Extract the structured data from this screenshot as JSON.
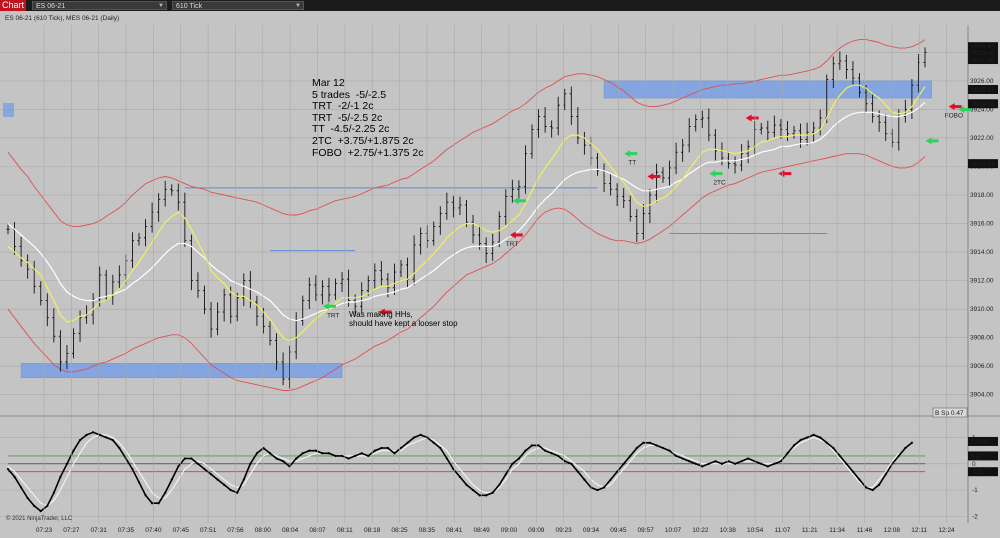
{
  "toolbar": {
    "tab_label": "Chart",
    "instrument": "ES 06-21",
    "interval": "610 Tick"
  },
  "chart_header": "ES 06-21 (610 Tick), MES 06-21 (Daily)",
  "notes": {
    "lines": [
      "Mar 12",
      "5 trades  -5/-2.5",
      "TRT  -2/-1 2c",
      "TRT  -5/-2.5 2c",
      "TT  -4.5/-2.25 2c",
      "2TC  +3.75/+1.875 2c",
      "FOBO  +2.75/+1.375 2c"
    ]
  },
  "annotation": {
    "line1": "Was making HHs,",
    "line2": "should have kept a looser stop"
  },
  "copyright": "© 2021 NinjaTrader, LLC",
  "colors": {
    "background": "#c4c4c4",
    "price_bars": "#111111",
    "ema_fast": "#f0f060",
    "ema_slow": "#ffffff",
    "bands": "#e05050",
    "zones": "#6f9be8",
    "entry_arrow": "#2ed15a",
    "exit_arrow": "#e0102a"
  },
  "chart_data": [
    {
      "type": "line",
      "name": "price",
      "ylim": [
        3903,
        3929.5
      ],
      "y_ticks": [
        3904,
        3906,
        3908,
        3910,
        3912,
        3914,
        3916,
        3918,
        3920,
        3922,
        3924,
        3926,
        3928
      ],
      "x_labels": [
        "07:23",
        "07:27",
        "07:31",
        "07:35",
        "07:40",
        "07:45",
        "07:51",
        "07:56",
        "08:00",
        "08:04",
        "08:07",
        "08:11",
        "08:18",
        "08:25",
        "08:35",
        "08:41",
        "08:49",
        "09:00",
        "09:09",
        "09:23",
        "09:34",
        "09:45",
        "09:57",
        "10:07",
        "10:22",
        "10:38",
        "10:54",
        "11:07",
        "11:21",
        "11:34",
        "11:46",
        "12:08",
        "12:11",
        "12:24"
      ],
      "close": [
        3915.6,
        3914.4,
        3913.4,
        3912.8,
        3911.6,
        3910.6,
        3909.4,
        3908.1,
        3906.3,
        3906.9,
        3908.3,
        3909.4,
        3909.6,
        3910.7,
        3912.4,
        3910.9,
        3911.9,
        3912.4,
        3913.4,
        3914.8,
        3915.0,
        3915.8,
        3916.8,
        3917.7,
        3918.4,
        3918.3,
        3917.5,
        3914.8,
        3912.0,
        3911.3,
        3910.0,
        3908.6,
        3909.8,
        3911.0,
        3909.5,
        3910.8,
        3912.0,
        3910.5,
        3909.5,
        3908.8,
        3907.8,
        3906.3,
        3905.1,
        3907.0,
        3909.2,
        3910.6,
        3911.7,
        3911.0,
        3911.6,
        3911.0,
        3911.8,
        3912.1,
        3910.6,
        3910.2,
        3911.3,
        3912.0,
        3912.7,
        3912.1,
        3911.5,
        3912.6,
        3913.1,
        3912.1,
        3914.5,
        3915.3,
        3914.8,
        3915.8,
        3916.7,
        3917.5,
        3917.1,
        3917.3,
        3916.1,
        3915.2,
        3914.6,
        3913.9,
        3914.7,
        3916.5,
        3917.9,
        3918.4,
        3918.6,
        3920.9,
        3922.6,
        3923.5,
        3922.8,
        3922.7,
        3924.3,
        3925.1,
        3923.5,
        3922.0,
        3921.5,
        3920.6,
        3919.7,
        3918.8,
        3918.4,
        3917.9,
        3917.6,
        3916.5,
        3915.3,
        3916.7,
        3918.0,
        3919.6,
        3919.2,
        3919.9,
        3921.0,
        3921.5,
        3922.8,
        3923.3,
        3923.4,
        3922.2,
        3921.1,
        3920.6,
        3920.2,
        3920.1,
        3920.9,
        3921.4,
        3922.6,
        3922.7,
        3922.4,
        3922.9,
        3922.6,
        3922.3,
        3922.5,
        3921.9,
        3922.4,
        3922.7,
        3923.4,
        3926.1,
        3927.2,
        3927.4,
        3926.8,
        3926.2,
        3925.2,
        3924.4,
        3923.5,
        3923.1,
        3922.3,
        3921.7,
        3923.5,
        3924.0,
        3925.7,
        3927.3,
        3928.0
      ],
      "ema_fast": [
        3914.4,
        3914.0,
        3913.6,
        3913.3,
        3912.8,
        3912.4,
        3911.5,
        3910.6,
        3909.6,
        3909.1,
        3909.2,
        3909.5,
        3909.6,
        3910.0,
        3910.5,
        3910.6,
        3911.0,
        3911.4,
        3912.0,
        3912.7,
        3913.3,
        3914.0,
        3914.7,
        3915.4,
        3916.1,
        3916.5,
        3916.8,
        3916.4,
        3915.6,
        3914.7,
        3913.8,
        3912.7,
        3912.2,
        3911.8,
        3911.2,
        3910.9,
        3910.9,
        3910.6,
        3910.3,
        3909.8,
        3909.3,
        3908.6,
        3908.0,
        3907.8,
        3908.0,
        3908.4,
        3908.9,
        3909.3,
        3909.7,
        3910.0,
        3910.4,
        3910.8,
        3910.8,
        3910.8,
        3910.9,
        3911.1,
        3911.4,
        3911.6,
        3911.6,
        3911.8,
        3912.0,
        3912.1,
        3912.5,
        3913.0,
        3913.4,
        3913.9,
        3914.4,
        3915.0,
        3915.4,
        3915.8,
        3916.0,
        3916.0,
        3915.8,
        3915.5,
        3915.4,
        3915.5,
        3915.8,
        3916.2,
        3916.6,
        3917.4,
        3918.3,
        3919.2,
        3919.9,
        3920.5,
        3921.2,
        3921.9,
        3922.2,
        3922.2,
        3922.0,
        3921.6,
        3921.2,
        3920.6,
        3920.0,
        3919.4,
        3918.9,
        3918.2,
        3917.5,
        3917.2,
        3917.3,
        3917.6,
        3917.8,
        3918.1,
        3918.6,
        3919.1,
        3919.8,
        3920.4,
        3921.0,
        3921.2,
        3921.2,
        3921.1,
        3921.0,
        3920.9,
        3921.0,
        3921.1,
        3921.4,
        3921.7,
        3921.8,
        3922.0,
        3922.1,
        3922.1,
        3922.2,
        3922.2,
        3922.2,
        3922.3,
        3922.6,
        3923.4,
        3924.3,
        3925.0,
        3925.5,
        3925.7,
        3925.7,
        3925.5,
        3925.1,
        3924.8,
        3924.3,
        3923.8,
        3923.7,
        3923.8,
        3924.2,
        3924.9,
        3925.6
      ],
      "ema_slow": [
        3916.0,
        3915.6,
        3915.2,
        3914.8,
        3914.4,
        3913.9,
        3913.3,
        3912.6,
        3911.8,
        3911.2,
        3910.9,
        3910.7,
        3910.6,
        3910.6,
        3910.8,
        3910.9,
        3911.0,
        3911.2,
        3911.4,
        3911.8,
        3912.1,
        3912.5,
        3912.9,
        3913.4,
        3913.9,
        3914.3,
        3914.6,
        3914.6,
        3914.4,
        3914.0,
        3913.6,
        3913.1,
        3912.7,
        3912.4,
        3912.0,
        3911.8,
        3911.6,
        3911.4,
        3911.2,
        3910.9,
        3910.6,
        3910.1,
        3909.6,
        3909.3,
        3909.2,
        3909.3,
        3909.5,
        3909.7,
        3909.9,
        3910.0,
        3910.2,
        3910.4,
        3910.5,
        3910.5,
        3910.6,
        3910.7,
        3910.9,
        3911.0,
        3911.1,
        3911.2,
        3911.4,
        3911.5,
        3911.8,
        3912.1,
        3912.4,
        3912.7,
        3913.1,
        3913.5,
        3913.8,
        3914.1,
        3914.3,
        3914.4,
        3914.4,
        3914.4,
        3914.4,
        3914.6,
        3914.9,
        3915.2,
        3915.5,
        3916.0,
        3916.6,
        3917.2,
        3917.7,
        3918.1,
        3918.6,
        3919.1,
        3919.4,
        3919.6,
        3919.7,
        3919.8,
        3919.8,
        3919.7,
        3919.5,
        3919.3,
        3919.1,
        3918.8,
        3918.5,
        3918.3,
        3918.3,
        3918.4,
        3918.5,
        3918.6,
        3918.9,
        3919.1,
        3919.5,
        3919.8,
        3920.1,
        3920.3,
        3920.3,
        3920.4,
        3920.4,
        3920.4,
        3920.5,
        3920.6,
        3920.8,
        3921.0,
        3921.1,
        3921.2,
        3921.4,
        3921.4,
        3921.5,
        3921.6,
        3921.6,
        3921.7,
        3921.9,
        3922.3,
        3922.8,
        3923.2,
        3923.5,
        3923.7,
        3923.8,
        3923.8,
        3923.8,
        3923.7,
        3923.6,
        3923.5,
        3923.5,
        3923.6,
        3923.8,
        3924.1,
        3924.5
      ],
      "upper_band": [
        3921.0,
        3920.4,
        3919.8,
        3919.3,
        3918.6,
        3918.0,
        3917.4,
        3916.8,
        3916.2,
        3915.9,
        3915.8,
        3915.8,
        3915.9,
        3916.0,
        3916.2,
        3916.5,
        3916.8,
        3917.1,
        3917.5,
        3918.0,
        3918.4,
        3918.8,
        3919.0,
        3919.2,
        3919.3,
        3919.2,
        3919.0,
        3918.8,
        3918.6,
        3918.5,
        3918.4,
        3918.2,
        3918.1,
        3918.0,
        3917.9,
        3917.8,
        3917.7,
        3917.6,
        3917.5,
        3917.3,
        3917.1,
        3916.9,
        3916.7,
        3916.6,
        3916.6,
        3916.7,
        3916.9,
        3917.0,
        3917.2,
        3917.4,
        3917.6,
        3917.7,
        3917.8,
        3917.9,
        3918.1,
        3918.3,
        3918.5,
        3918.6,
        3918.7,
        3918.9,
        3919.1,
        3919.2,
        3919.5,
        3919.8,
        3920.1,
        3920.4,
        3920.8,
        3921.2,
        3921.5,
        3921.8,
        3922.1,
        3922.4,
        3922.6,
        3922.8,
        3923.0,
        3923.3,
        3923.6,
        3923.9,
        3924.1,
        3924.4,
        3924.8,
        3925.2,
        3925.5,
        3925.7,
        3926.0,
        3926.3,
        3926.4,
        3926.5,
        3926.5,
        3926.4,
        3926.3,
        3926.1,
        3925.9,
        3925.6,
        3925.3,
        3924.9,
        3924.5,
        3924.3,
        3924.2,
        3924.2,
        3924.3,
        3924.4,
        3924.6,
        3924.8,
        3925.0,
        3925.2,
        3925.4,
        3925.5,
        3925.6,
        3925.7,
        3925.7,
        3925.8,
        3925.8,
        3925.9,
        3926.0,
        3926.1,
        3926.2,
        3926.3,
        3926.4,
        3926.4,
        3926.5,
        3926.6,
        3926.7,
        3926.8,
        3927.0,
        3927.4,
        3927.9,
        3928.3,
        3928.6,
        3928.8,
        3928.9,
        3928.9,
        3928.8,
        3928.7,
        3928.5,
        3928.4,
        3928.3,
        3928.3,
        3928.4,
        3928.6,
        3928.9
      ],
      "lower_band": [
        3910.0,
        3909.4,
        3908.8,
        3908.2,
        3907.6,
        3907.1,
        3906.6,
        3906.1,
        3905.8,
        3905.6,
        3905.6,
        3905.7,
        3905.8,
        3906.0,
        3906.2,
        3906.3,
        3906.5,
        3906.7,
        3906.9,
        3907.2,
        3907.4,
        3907.6,
        3907.8,
        3908.0,
        3908.1,
        3908.2,
        3908.2,
        3908.0,
        3907.6,
        3907.1,
        3906.6,
        3906.1,
        3905.8,
        3905.5,
        3905.2,
        3905.0,
        3904.9,
        3904.8,
        3904.7,
        3904.6,
        3904.5,
        3904.4,
        3904.3,
        3904.3,
        3904.4,
        3904.6,
        3904.8,
        3905.0,
        3905.2,
        3905.5,
        3905.8,
        3906.1,
        3906.3,
        3906.5,
        3906.8,
        3907.1,
        3907.4,
        3907.6,
        3907.8,
        3908.1,
        3908.4,
        3908.6,
        3909.0,
        3909.4,
        3909.8,
        3910.2,
        3910.7,
        3911.2,
        3911.6,
        3912.0,
        3912.4,
        3912.6,
        3912.8,
        3913.0,
        3913.2,
        3913.5,
        3913.9,
        3914.3,
        3914.7,
        3915.2,
        3915.8,
        3916.4,
        3916.8,
        3917.0,
        3917.1,
        3917.0,
        3916.7,
        3916.3,
        3915.9,
        3915.6,
        3915.3,
        3915.1,
        3914.9,
        3914.8,
        3914.8,
        3914.7,
        3914.6,
        3914.7,
        3914.9,
        3915.2,
        3915.5,
        3915.8,
        3916.2,
        3916.6,
        3917.0,
        3917.4,
        3917.8,
        3918.1,
        3918.3,
        3918.5,
        3918.7,
        3918.8,
        3919.0,
        3919.2,
        3919.4,
        3919.6,
        3919.7,
        3919.8,
        3919.9,
        3920.0,
        3920.1,
        3920.2,
        3920.3,
        3920.4,
        3920.5,
        3920.6,
        3920.7,
        3920.8,
        3920.9,
        3920.9,
        3920.9,
        3920.8,
        3920.6,
        3920.4,
        3920.2,
        3920.0,
        3919.9,
        3919.9,
        3920.0,
        3920.3,
        3920.7
      ],
      "zones": [
        {
          "from": 3905.2,
          "to": 3906.2,
          "x_start": 2,
          "x_end": 51
        },
        {
          "from": 3924.8,
          "to": 3926.0,
          "x_start": 91,
          "x_end": 141
        }
      ],
      "levels": [
        {
          "y": 3918.5,
          "x_start": 27,
          "x_end": 90
        },
        {
          "y": 3914.1,
          "x_start": 40,
          "x_end": 53
        },
        {
          "y": 3915.3,
          "x_start": 101,
          "x_end": 125
        }
      ],
      "markers": [
        {
          "i": 49,
          "y": 3910.2,
          "kind": "entry",
          "label": "TRT"
        },
        {
          "i": 56,
          "y": 3909.8,
          "kind": "exit",
          "label": ""
        },
        {
          "i": 76,
          "y": 3915.2,
          "kind": "exit",
          "label": "TRT"
        },
        {
          "i": 78,
          "y": 3917.6,
          "kind": "entry",
          "label": ""
        },
        {
          "i": 95,
          "y": 3920.9,
          "kind": "entry",
          "label": "TT"
        },
        {
          "i": 97,
          "y": 3919.3,
          "kind": "exit",
          "label": ""
        },
        {
          "i": 108,
          "y": 3919.5,
          "kind": "entry",
          "label": "2TC"
        },
        {
          "i": 112,
          "y": 3923.4,
          "kind": "exit",
          "label": ""
        },
        {
          "i": 117,
          "y": 3919.5,
          "kind": "exit",
          "label": ""
        },
        {
          "i": 141,
          "y": 3921.8,
          "kind": "entry",
          "label": ""
        },
        {
          "i": 143,
          "y": 3924.2,
          "kind": "exit",
          "label": "FOBO"
        },
        {
          "i": 146,
          "y": 3924.0,
          "kind": "entry",
          "label": ""
        }
      ],
      "price_labels": [
        {
          "value": "3928.40",
          "y": 3928.4
        },
        {
          "value": "3928.00",
          "y": 3928.0
        },
        {
          "value": "3927.50",
          "y": 3927.5
        },
        {
          "value": "3925.37",
          "y": 3925.4
        },
        {
          "value": "3924.36",
          "y": 3924.4
        },
        {
          "value": "3920.24",
          "y": 3920.2
        }
      ]
    },
    {
      "type": "line",
      "name": "oscillator",
      "ylim": [
        -2.1,
        1.4
      ],
      "y_ticks": [
        1,
        0,
        -1,
        -2
      ],
      "y_tick_labels": [
        "1",
        "0",
        "-1",
        "-2"
      ],
      "levels": [
        0.3,
        -0.3
      ],
      "readout": "0.804",
      "readout_2": "0.3",
      "readout_3": "-0.3",
      "spread_label": "B Sp 0.47",
      "values": [
        -0.2,
        -0.5,
        -0.9,
        -1.3,
        -1.6,
        -1.8,
        -1.6,
        -1.1,
        -0.5,
        0.0,
        0.5,
        0.9,
        1.1,
        1.2,
        1.1,
        1.0,
        0.9,
        0.6,
        0.2,
        -0.2,
        -0.7,
        -1.2,
        -1.5,
        -1.5,
        -1.1,
        -0.6,
        -0.1,
        0.2,
        0.2,
        0.0,
        -0.2,
        -0.4,
        -0.6,
        -0.8,
        -1.0,
        -1.1,
        -0.6,
        0.0,
        0.4,
        0.6,
        0.4,
        0.2,
        0.1,
        -0.1,
        0.2,
        0.4,
        0.5,
        0.5,
        0.4,
        0.4,
        0.3,
        0.3,
        0.2,
        0.3,
        0.4,
        0.3,
        0.5,
        0.6,
        0.6,
        0.4,
        0.6,
        0.8,
        1.0,
        1.1,
        1.0,
        0.8,
        0.6,
        0.2,
        -0.2,
        -0.5,
        -0.8,
        -1.0,
        -1.2,
        -1.2,
        -1.1,
        -0.8,
        -0.4,
        0.0,
        0.2,
        0.5,
        0.7,
        0.7,
        0.5,
        0.4,
        0.3,
        0.1,
        0.0,
        -0.3,
        -0.6,
        -0.9,
        -1.0,
        -0.9,
        -0.6,
        -0.3,
        0.0,
        0.3,
        0.6,
        0.8,
        0.8,
        0.7,
        0.6,
        0.5,
        0.3,
        0.2,
        0.1,
        0.0,
        -0.1,
        0.0,
        0.1,
        0.0,
        0.1,
        0.0,
        0.1,
        0.2,
        0.1,
        0.0,
        -0.1,
        0.0,
        0.1,
        0.4,
        0.7,
        0.9,
        1.0,
        1.1,
        1.0,
        0.8,
        0.6,
        0.3,
        0.0,
        -0.3,
        -0.6,
        -0.9,
        -1.0,
        -0.8,
        -0.4,
        0.0,
        0.3,
        0.6,
        0.8
      ],
      "signal": [
        -0.1,
        -0.3,
        -0.6,
        -0.9,
        -1.2,
        -1.5,
        -1.6,
        -1.4,
        -1.0,
        -0.5,
        0.0,
        0.4,
        0.8,
        1.0,
        1.1,
        1.1,
        1.0,
        0.8,
        0.5,
        0.1,
        -0.3,
        -0.7,
        -1.1,
        -1.3,
        -1.3,
        -1.0,
        -0.6,
        -0.2,
        0.0,
        0.1,
        0.0,
        -0.2,
        -0.4,
        -0.6,
        -0.8,
        -0.9,
        -0.8,
        -0.4,
        0.0,
        0.3,
        0.4,
        0.3,
        0.2,
        0.1,
        0.1,
        0.2,
        0.3,
        0.4,
        0.4,
        0.4,
        0.3,
        0.3,
        0.3,
        0.3,
        0.3,
        0.3,
        0.4,
        0.5,
        0.5,
        0.5,
        0.5,
        0.7,
        0.8,
        0.9,
        1.0,
        0.9,
        0.7,
        0.5,
        0.1,
        -0.2,
        -0.5,
        -0.8,
        -1.0,
        -1.1,
        -1.1,
        -0.9,
        -0.6,
        -0.2,
        0.0,
        0.3,
        0.5,
        0.6,
        0.6,
        0.5,
        0.4,
        0.3,
        0.1,
        -0.1,
        -0.3,
        -0.6,
        -0.8,
        -0.9,
        -0.8,
        -0.5,
        -0.2,
        0.1,
        0.4,
        0.6,
        0.7,
        0.7,
        0.6,
        0.5,
        0.4,
        0.3,
        0.2,
        0.1,
        0.0,
        0.0,
        0.0,
        0.0,
        0.0,
        0.0,
        0.1,
        0.1,
        0.1,
        0.0,
        0.0,
        0.0,
        0.2,
        0.4,
        0.6,
        0.8,
        0.9,
        1.0,
        0.9,
        0.8,
        0.5,
        0.2,
        -0.1,
        -0.4,
        -0.7,
        -0.9,
        -0.9,
        -0.6,
        -0.3,
        0.1,
        0.4
      ]
    }
  ]
}
